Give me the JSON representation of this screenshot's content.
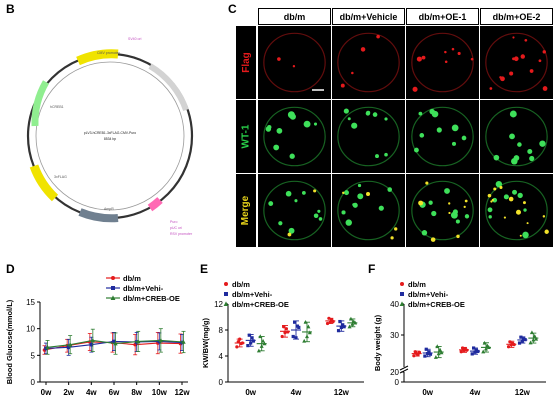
{
  "panels": {
    "B": "B",
    "C": "C",
    "D": "D",
    "E": "E",
    "F": "F"
  },
  "plasmid": {
    "center_name": "pLV3-hCREB1-3xFLAG-CMV-Puro",
    "center_size": "8534 bp",
    "labels": [
      "SV40 ori",
      "CMV promoter",
      "hCREB1",
      "3xFLAG",
      "AmpR",
      "Puro",
      "pUC ori",
      "RSV promoter"
    ]
  },
  "micrograph": {
    "columns": [
      "db/m",
      "db/m+Vehicle",
      "db/m+OE-1",
      "db/m+OE-2"
    ],
    "rows": [
      {
        "label": "Flag",
        "color": "#e41a1c"
      },
      {
        "label": "WT-1",
        "color": "#29d14a"
      },
      {
        "label": "Merge",
        "color": "#e6d21a"
      }
    ]
  },
  "chart_data": [
    {
      "type": "line",
      "panel": "D",
      "ylabel": "Blood Glucose(mmol/L)",
      "x": [
        "0w",
        "2w",
        "4w",
        "6w",
        "8w",
        "10w",
        "12w"
      ],
      "ylim": [
        0,
        15
      ],
      "yticks": [
        "0",
        "5",
        "10",
        "15"
      ],
      "series": [
        {
          "name": "db/m",
          "color": "#e41a1c",
          "marker": "circle",
          "values": [
            6.0,
            6.8,
            7.5,
            7.4,
            7.0,
            7.3,
            7.2
          ],
          "err": [
            0.8,
            1.2,
            1.6,
            1.8,
            1.9,
            2.0,
            1.8
          ]
        },
        {
          "name": "db/m+Vehi-",
          "color": "#1f2b9e",
          "marker": "square",
          "values": [
            6.3,
            6.5,
            7.0,
            7.6,
            7.5,
            7.6,
            7.4
          ],
          "err": [
            1.0,
            1.5,
            1.4,
            1.7,
            1.8,
            1.6,
            1.5
          ]
        },
        {
          "name": "db/m+CREB-OE",
          "color": "#2e7d32",
          "marker": "triangle",
          "values": [
            6.5,
            7.0,
            7.8,
            7.2,
            7.6,
            7.8,
            7.5
          ],
          "err": [
            1.3,
            1.7,
            2.1,
            2.0,
            1.9,
            2.2,
            2.0
          ]
        }
      ]
    },
    {
      "type": "scatter",
      "panel": "E",
      "ylabel": "KW/BW(mg/g)",
      "categories": [
        "0w",
        "4w",
        "12w"
      ],
      "ylim": [
        0,
        12
      ],
      "yticks": [
        "0",
        "4",
        "8",
        "12"
      ],
      "series": [
        {
          "name": "db/m",
          "color": "#e41a1c",
          "marker": "circle",
          "mean": [
            6.0,
            7.8,
            9.4
          ],
          "sd": [
            0.6,
            0.9,
            0.4
          ],
          "points": [
            [
              5.4,
              6.2,
              6.6,
              5.9,
              6.0
            ],
            [
              7.0,
              8.5,
              7.6,
              8.2,
              7.7
            ],
            [
              9.0,
              9.8,
              9.2,
              9.6,
              9.3
            ]
          ]
        },
        {
          "name": "db/m+Vehi-",
          "color": "#1f2b9e",
          "marker": "square",
          "mean": [
            6.4,
            8.0,
            8.6
          ],
          "sd": [
            0.9,
            1.4,
            0.8
          ],
          "points": [
            [
              5.6,
              7.2,
              6.0,
              6.8,
              6.3
            ],
            [
              7.0,
              9.2,
              6.8,
              8.6,
              8.4
            ],
            [
              7.9,
              9.3,
              8.4,
              8.8,
              8.5
            ]
          ]
        },
        {
          "name": "db/m+CREB-OE",
          "color": "#2e7d32",
          "marker": "triangle",
          "mean": [
            5.9,
            7.7,
            9.1
          ],
          "sd": [
            1.1,
            1.5,
            0.6
          ],
          "points": [
            [
              4.8,
              7.0,
              5.5,
              6.3,
              5.9
            ],
            [
              6.3,
              9.2,
              7.0,
              8.5,
              7.6
            ],
            [
              8.5,
              9.7,
              8.9,
              9.3,
              9.1
            ]
          ]
        }
      ]
    },
    {
      "type": "scatter",
      "panel": "F",
      "ylabel": "Body weight (g)",
      "categories": [
        "0w",
        "4w",
        "12w"
      ],
      "ylim": [
        0,
        40
      ],
      "yticks": [
        "0",
        "20",
        "30",
        "40"
      ],
      "axis_break": true,
      "series": [
        {
          "name": "db/m",
          "color": "#e41a1c",
          "marker": "circle",
          "mean": [
            24.0,
            25.2,
            27.0
          ],
          "sd": [
            0.8,
            0.8,
            1.0
          ],
          "points": [
            [
              23.3,
              24.6,
              24.0,
              23.7,
              24.4
            ],
            [
              24.6,
              25.8,
              25.0,
              25.5,
              25.1
            ],
            [
              26.2,
              27.8,
              26.8,
              27.3,
              26.9
            ]
          ]
        },
        {
          "name": "db/m+Vehi-",
          "color": "#1f2b9e",
          "marker": "square",
          "mean": [
            24.2,
            24.8,
            28.4
          ],
          "sd": [
            1.2,
            1.0,
            1.0
          ],
          "points": [
            [
              23.2,
              25.4,
              24.0,
              24.6,
              23.8
            ],
            [
              23.9,
              25.8,
              24.5,
              25.1,
              24.7
            ],
            [
              27.4,
              29.3,
              28.0,
              28.8,
              28.5
            ]
          ]
        },
        {
          "name": "db/m+CREB-OE",
          "color": "#2e7d32",
          "marker": "triangle",
          "mean": [
            24.5,
            26.0,
            29.0
          ],
          "sd": [
            1.8,
            1.5,
            1.6
          ],
          "points": [
            [
              22.8,
              26.3,
              24.0,
              25.2,
              24.3
            ],
            [
              24.6,
              27.4,
              25.5,
              26.5,
              26.0
            ],
            [
              27.5,
              30.8,
              28.4,
              29.6,
              28.7
            ]
          ]
        }
      ]
    }
  ]
}
